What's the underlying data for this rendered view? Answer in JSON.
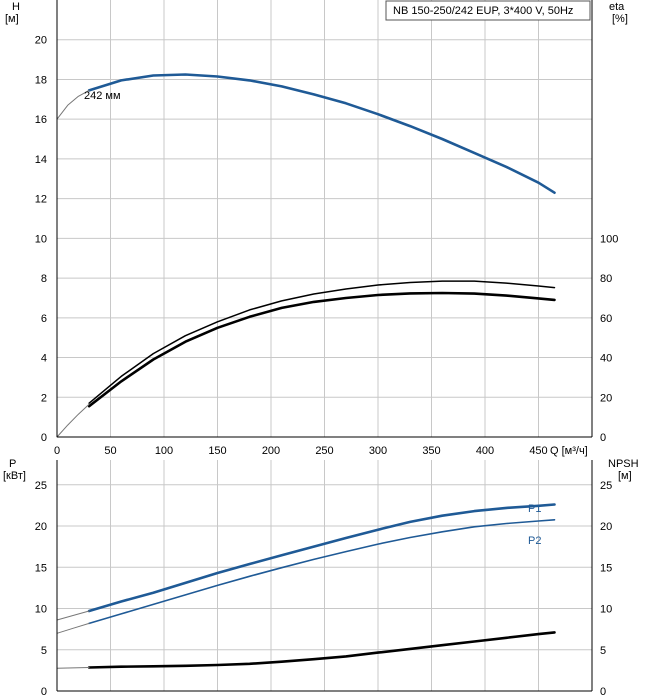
{
  "chart_data": [
    {
      "type": "line",
      "title": "NB 150-250/242 EUP, 3*400 V, 50Hz",
      "ylabel_left": [
        "H",
        "[м]"
      ],
      "ylabel_right": [
        "eta",
        "[%]"
      ],
      "xlabel": "Q [м³/ч]",
      "xlim": [
        0,
        500
      ],
      "ylim_left": [
        0,
        22
      ],
      "ylim_right": [
        0,
        220
      ],
      "xticks": [
        0,
        50,
        100,
        150,
        200,
        250,
        300,
        350,
        400,
        450
      ],
      "yticks_left": [
        0,
        2,
        4,
        6,
        8,
        10,
        12,
        14,
        16,
        18,
        20
      ],
      "yticks_right": [
        0,
        20,
        40,
        60,
        80,
        100
      ],
      "grid": true,
      "annotations": [
        {
          "text": "242 мм",
          "x": 15,
          "y": 17.0
        }
      ],
      "series": [
        {
          "key": "head",
          "axis": "left",
          "color": "#1f5a96",
          "width": 2.6,
          "x": [
            30,
            60,
            90,
            120,
            150,
            180,
            210,
            240,
            270,
            300,
            330,
            360,
            390,
            420,
            450,
            465
          ],
          "y": [
            17.45,
            17.95,
            18.2,
            18.25,
            18.15,
            17.95,
            17.65,
            17.25,
            16.8,
            16.25,
            15.65,
            15.0,
            14.3,
            13.6,
            12.8,
            12.3
          ]
        },
        {
          "key": "head-extension",
          "axis": "left",
          "color": "#777777",
          "width": 1,
          "x": [
            0,
            10,
            20,
            30
          ],
          "y": [
            16.0,
            16.7,
            17.15,
            17.45
          ]
        },
        {
          "key": "efficiency-upper",
          "axis": "right",
          "color": "#000000",
          "width": 1.5,
          "x": [
            30,
            60,
            90,
            120,
            150,
            180,
            210,
            240,
            270,
            300,
            330,
            360,
            390,
            420,
            450,
            465
          ],
          "y": [
            17,
            30.5,
            42,
            51,
            58,
            64,
            68.5,
            72,
            74.5,
            76.5,
            77.8,
            78.5,
            78.5,
            77.5,
            76,
            75.2
          ]
        },
        {
          "key": "efficiency-lower",
          "axis": "right",
          "color": "#000000",
          "width": 2.6,
          "x": [
            30,
            60,
            90,
            120,
            150,
            180,
            210,
            240,
            270,
            300,
            330,
            360,
            390,
            420,
            450,
            465
          ],
          "y": [
            15.5,
            28,
            39,
            48,
            55,
            60.5,
            65,
            68,
            70,
            71.5,
            72.3,
            72.5,
            72.2,
            71.2,
            69.8,
            69
          ]
        },
        {
          "key": "efficiency-extension",
          "axis": "right",
          "color": "#777777",
          "width": 1,
          "x": [
            0,
            10,
            20,
            30
          ],
          "y": [
            0,
            6,
            11.5,
            16.5
          ]
        }
      ]
    },
    {
      "type": "line",
      "ylabel_left": [
        "P",
        "[кВт]"
      ],
      "ylabel_right": [
        "NPSH",
        "[м]"
      ],
      "xlim": [
        0,
        500
      ],
      "ylim_left": [
        0,
        28
      ],
      "ylim_right": [
        0,
        28
      ],
      "yticks_left": [
        0,
        5,
        10,
        15,
        20,
        25
      ],
      "yticks_right": [
        0,
        5,
        10,
        15,
        20,
        25
      ],
      "grid": true,
      "series": [
        {
          "key": "P1",
          "name": "P1",
          "axis": "left",
          "color": "#1f5a96",
          "width": 2.6,
          "x": [
            30,
            60,
            90,
            120,
            150,
            180,
            210,
            240,
            270,
            300,
            330,
            360,
            390,
            420,
            450,
            465
          ],
          "y": [
            9.7,
            10.85,
            11.9,
            13.1,
            14.3,
            15.4,
            16.45,
            17.5,
            18.55,
            19.55,
            20.5,
            21.25,
            21.8,
            22.2,
            22.45,
            22.6
          ]
        },
        {
          "key": "P2",
          "name": "P2",
          "axis": "left",
          "color": "#1f5a96",
          "width": 1.6,
          "x": [
            30,
            60,
            90,
            120,
            150,
            180,
            210,
            240,
            270,
            300,
            330,
            360,
            390,
            420,
            450,
            465
          ],
          "y": [
            8.2,
            9.35,
            10.5,
            11.65,
            12.8,
            13.9,
            14.95,
            15.95,
            16.9,
            17.8,
            18.6,
            19.3,
            19.9,
            20.3,
            20.6,
            20.75
          ]
        },
        {
          "key": "npsh",
          "axis": "right",
          "color": "#000000",
          "width": 2.6,
          "x": [
            30,
            60,
            90,
            120,
            150,
            180,
            210,
            240,
            270,
            300,
            330,
            360,
            390,
            420,
            450,
            465
          ],
          "y": [
            2.85,
            2.95,
            3.0,
            3.05,
            3.15,
            3.3,
            3.55,
            3.85,
            4.2,
            4.65,
            5.1,
            5.55,
            6.0,
            6.45,
            6.9,
            7.1
          ]
        },
        {
          "key": "P1-extension",
          "axis": "left",
          "color": "#777777",
          "width": 1,
          "x": [
            0,
            15,
            30
          ],
          "y": [
            8.6,
            9.15,
            9.7
          ]
        },
        {
          "key": "P2-extension",
          "axis": "left",
          "color": "#777777",
          "width": 1,
          "x": [
            0,
            15,
            30
          ],
          "y": [
            7.0,
            7.6,
            8.2
          ]
        },
        {
          "key": "npsh-extension",
          "axis": "right",
          "color": "#777777",
          "width": 1,
          "x": [
            0,
            15,
            30
          ],
          "y": [
            2.75,
            2.8,
            2.85
          ]
        }
      ]
    }
  ]
}
